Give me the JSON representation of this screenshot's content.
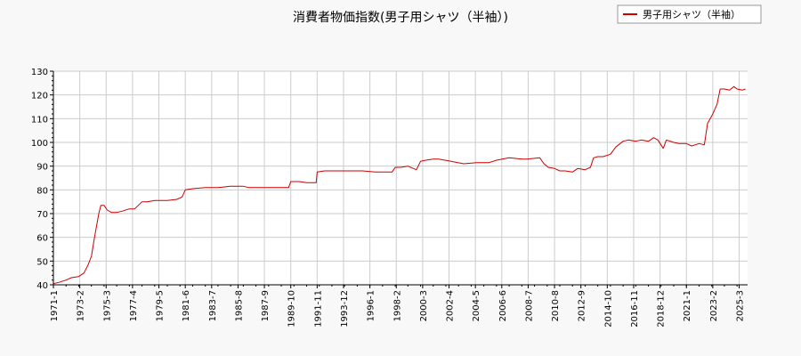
{
  "chart_data": {
    "type": "line",
    "title": "消費者物価指数(男子用シャツ（半袖）)",
    "xlabel": "",
    "ylabel": "",
    "ylim": [
      40,
      130
    ],
    "y_ticks": [
      40,
      50,
      60,
      70,
      80,
      90,
      100,
      110,
      120,
      130
    ],
    "x_tick_labels": [
      "1971-1",
      "1973-2",
      "1975-3",
      "1977-4",
      "1979-5",
      "1981-6",
      "1983-7",
      "1985-8",
      "1987-9",
      "1989-10",
      "1991-11",
      "1993-12",
      "1996-1",
      "1998-2",
      "2000-3",
      "2002-4",
      "2004-5",
      "2006-6",
      "2008-7",
      "2010-8",
      "2012-9",
      "2014-10",
      "2016-11",
      "2018-12",
      "2021-1",
      "2023-2",
      "2025-3"
    ],
    "grid": true,
    "legend_position": "top-right",
    "colors": {
      "line": "#cc0000",
      "grid": "#cccccc",
      "plot_bg": "#ffffff",
      "page_bg": "#f8f8f8"
    },
    "series": [
      {
        "name": "男子用シャツ（半袖）",
        "points": [
          [
            "1971-01",
            40.5
          ],
          [
            "1971-06",
            41.0
          ],
          [
            "1972-01",
            42.0
          ],
          [
            "1972-06",
            43.0
          ],
          [
            "1973-01",
            43.5
          ],
          [
            "1973-06",
            45.0
          ],
          [
            "1973-10",
            48.5
          ],
          [
            "1974-01",
            52.0
          ],
          [
            "1974-04",
            60.0
          ],
          [
            "1974-08",
            70.0
          ],
          [
            "1974-10",
            73.5
          ],
          [
            "1975-01",
            73.5
          ],
          [
            "1975-04",
            71.5
          ],
          [
            "1975-08",
            70.5
          ],
          [
            "1976-01",
            70.5
          ],
          [
            "1976-06",
            71.0
          ],
          [
            "1977-01",
            72.0
          ],
          [
            "1977-06",
            72.0
          ],
          [
            "1978-01",
            75.0
          ],
          [
            "1978-06",
            75.0
          ],
          [
            "1979-01",
            75.5
          ],
          [
            "1980-01",
            75.5
          ],
          [
            "1980-10",
            76.0
          ],
          [
            "1981-03",
            77.0
          ],
          [
            "1981-06",
            80.0
          ],
          [
            "1982-01",
            80.5
          ],
          [
            "1983-01",
            81.0
          ],
          [
            "1984-01",
            81.0
          ],
          [
            "1985-01",
            81.5
          ],
          [
            "1986-01",
            81.5
          ],
          [
            "1986-06",
            81.0
          ],
          [
            "1987-06",
            81.0
          ],
          [
            "1988-06",
            81.0
          ],
          [
            "1989-08",
            81.0
          ],
          [
            "1989-10",
            83.5
          ],
          [
            "1990-06",
            83.5
          ],
          [
            "1991-01",
            83.0
          ],
          [
            "1991-10",
            83.0
          ],
          [
            "1991-11",
            87.5
          ],
          [
            "1992-06",
            88.0
          ],
          [
            "1993-06",
            88.0
          ],
          [
            "1994-06",
            88.0
          ],
          [
            "1995-06",
            88.0
          ],
          [
            "1996-06",
            87.5
          ],
          [
            "1997-06",
            87.5
          ],
          [
            "1997-10",
            87.5
          ],
          [
            "1998-01",
            89.5
          ],
          [
            "1998-06",
            89.5
          ],
          [
            "1999-01",
            90.0
          ],
          [
            "1999-09",
            88.5
          ],
          [
            "2000-01",
            92.0
          ],
          [
            "2000-06",
            92.5
          ],
          [
            "2001-01",
            93.0
          ],
          [
            "2001-06",
            93.0
          ],
          [
            "2002-06",
            92.0
          ],
          [
            "2003-06",
            91.0
          ],
          [
            "2004-06",
            91.5
          ],
          [
            "2005-06",
            91.5
          ],
          [
            "2006-01",
            92.5
          ],
          [
            "2007-01",
            93.5
          ],
          [
            "2008-01",
            93.0
          ],
          [
            "2008-06",
            93.0
          ],
          [
            "2009-06",
            93.5
          ],
          [
            "2009-10",
            91.0
          ],
          [
            "2010-02",
            89.5
          ],
          [
            "2010-08",
            89.0
          ],
          [
            "2011-01",
            88.0
          ],
          [
            "2011-06",
            88.0
          ],
          [
            "2012-01",
            87.5
          ],
          [
            "2012-06",
            89.0
          ],
          [
            "2013-01",
            88.5
          ],
          [
            "2013-06",
            89.5
          ],
          [
            "2013-09",
            93.5
          ],
          [
            "2014-01",
            94.0
          ],
          [
            "2014-06",
            94.0
          ],
          [
            "2015-01",
            95.0
          ],
          [
            "2015-06",
            98.0
          ],
          [
            "2016-01",
            100.5
          ],
          [
            "2016-06",
            101.0
          ],
          [
            "2017-01",
            100.5
          ],
          [
            "2017-06",
            101.0
          ],
          [
            "2018-01",
            100.5
          ],
          [
            "2018-06",
            102.0
          ],
          [
            "2018-10",
            101.0
          ],
          [
            "2019-03",
            97.5
          ],
          [
            "2019-06",
            101.0
          ],
          [
            "2020-01",
            100.0
          ],
          [
            "2020-06",
            99.5
          ],
          [
            "2021-01",
            99.5
          ],
          [
            "2021-06",
            98.5
          ],
          [
            "2022-01",
            99.5
          ],
          [
            "2022-06",
            99.0
          ],
          [
            "2022-09",
            108.0
          ],
          [
            "2023-02",
            112.0
          ],
          [
            "2023-06",
            116.0
          ],
          [
            "2023-09",
            122.5
          ],
          [
            "2024-01",
            122.5
          ],
          [
            "2024-06",
            122.0
          ],
          [
            "2024-10",
            123.5
          ],
          [
            "2025-01",
            122.5
          ],
          [
            "2025-06",
            122.0
          ],
          [
            "2025-09",
            122.5
          ]
        ]
      }
    ]
  }
}
